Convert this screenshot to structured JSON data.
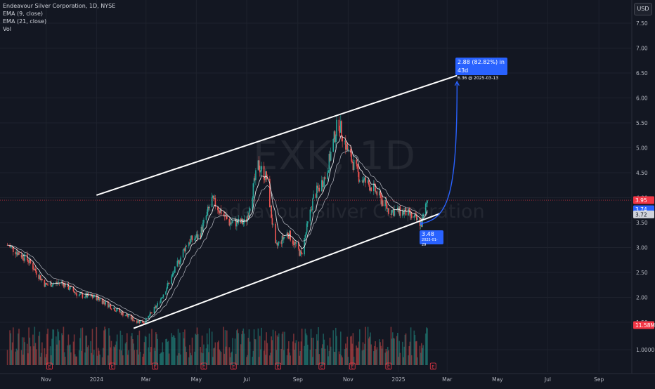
{
  "legend": {
    "title": "Endeavour Silver Corporation, 1D, NYSE",
    "ema9": "EMA (9, close)",
    "ema21": "EMA (21, close)",
    "vol": "Vol"
  },
  "currency_button": "USD",
  "watermark": {
    "symbol": "EXK, 1D",
    "name": "Endeavour Silver Corporation"
  },
  "colors": {
    "background": "#131722",
    "up": "#26a69a",
    "down": "#ef5350",
    "trendline": "#ffffff",
    "accent": "#2962ff",
    "price_line": "#f23645"
  },
  "chart_data": {
    "type": "candlestick",
    "symbol": "EXK",
    "interval": "1D",
    "exchange": "NYSE",
    "yaxis_ticks": [
      "7.50",
      "7.00",
      "6.50",
      "6.00",
      "5.50",
      "5.00",
      "4.50",
      "4.00",
      "3.50",
      "3.00",
      "2.50",
      "2.00",
      "1.50",
      "1.0000"
    ],
    "xaxis_ticks": [
      "Nov",
      "2024",
      "Mar",
      "May",
      "Jul",
      "Sep",
      "Nov",
      "2025",
      "Mar",
      "May",
      "Jul",
      "Sep"
    ],
    "ylim": [
      1.0,
      7.7
    ],
    "price_badges": [
      {
        "label": "3.95",
        "value": 3.95,
        "color": "#f23645"
      },
      {
        "label": "3.74",
        "value": 3.74,
        "color": "#2962ff"
      },
      {
        "label": "3.72",
        "value": 3.72,
        "color": "#d1d4dc"
      },
      {
        "label": "11.58M",
        "value": 11.58,
        "color": "#f23645",
        "kind": "volume"
      }
    ],
    "close_path": [
      [
        "2023-09-15",
        3.05
      ],
      [
        "2023-10-10",
        2.75
      ],
      [
        "2023-10-31",
        2.25
      ],
      [
        "2023-11-20",
        2.3
      ],
      [
        "2023-12-10",
        2.05
      ],
      [
        "2024-01-01",
        2.0
      ],
      [
        "2024-01-25",
        1.75
      ],
      [
        "2024-02-15",
        1.55
      ],
      [
        "2024-02-28",
        1.5
      ],
      [
        "2024-03-15",
        1.85
      ],
      [
        "2024-04-01",
        2.4
      ],
      [
        "2024-04-20",
        3.1
      ],
      [
        "2024-05-05",
        3.25
      ],
      [
        "2024-05-20",
        3.95
      ],
      [
        "2024-06-10",
        3.5
      ],
      [
        "2024-06-30",
        3.5
      ],
      [
        "2024-07-15",
        4.65
      ],
      [
        "2024-07-25",
        4.4
      ],
      [
        "2024-08-05",
        3.0
      ],
      [
        "2024-08-20",
        3.3
      ],
      [
        "2024-09-05",
        2.85
      ],
      [
        "2024-09-20",
        4.0
      ],
      [
        "2024-10-05",
        4.45
      ],
      [
        "2024-10-20",
        5.55
      ],
      [
        "2024-10-31",
        4.95
      ],
      [
        "2024-11-15",
        4.4
      ],
      [
        "2024-12-01",
        4.2
      ],
      [
        "2024-12-20",
        3.75
      ],
      [
        "2025-01-10",
        3.7
      ],
      [
        "2025-01-29",
        3.48
      ],
      [
        "2025-02-05",
        3.95
      ]
    ],
    "channel": {
      "upper": [
        [
          "2024-01-01",
          4.05
        ],
        [
          "2025-03-13",
          6.45
        ]
      ],
      "lower": [
        [
          "2024-02-15",
          1.38
        ],
        [
          "2025-02-20",
          3.68
        ]
      ]
    },
    "projection": [
      [
        "2025-01-29",
        3.48
      ],
      [
        "2025-03-13",
        6.36
      ]
    ],
    "annotations": [
      {
        "text": "2.88 (82.82%) in 43d",
        "sub": "6.36 @ 2025-03-13"
      },
      {
        "text": "3.48",
        "sub": "2025-01-29"
      }
    ],
    "event_markers": [
      "E",
      "E",
      "E",
      "E",
      "E",
      "E",
      "E",
      "E",
      "E",
      "E"
    ]
  }
}
